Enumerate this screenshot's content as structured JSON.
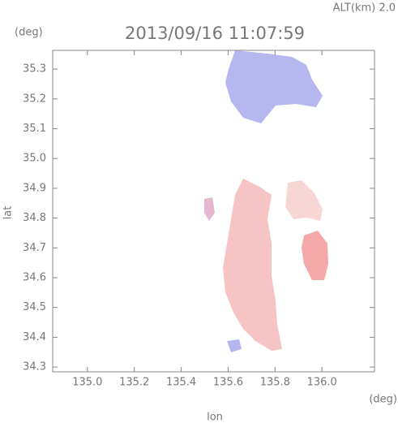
{
  "chart_data": {
    "type": "map",
    "title": "2013/09/16 11:07:59",
    "subtitle": "ALT(km) 2.0",
    "x_label": "lon",
    "y_label": "lat",
    "x_unit": "(deg)",
    "y_unit": "(deg)",
    "xlim": [
      134.852,
      136.224
    ],
    "ylim": [
      34.284,
      35.363
    ],
    "xticks": [
      {
        "value": 135.0,
        "label": "135.0"
      },
      135.2,
      135.4,
      135.6,
      135.8,
      {
        "value": 136.0,
        "label": "136.0"
      }
    ],
    "yticks": [
      34.3,
      34.4,
      34.5,
      34.6,
      34.7,
      34.8,
      34.9,
      {
        "value": 35.0,
        "label": "35.0"
      },
      35.1,
      35.2,
      35.3
    ]
  }
}
